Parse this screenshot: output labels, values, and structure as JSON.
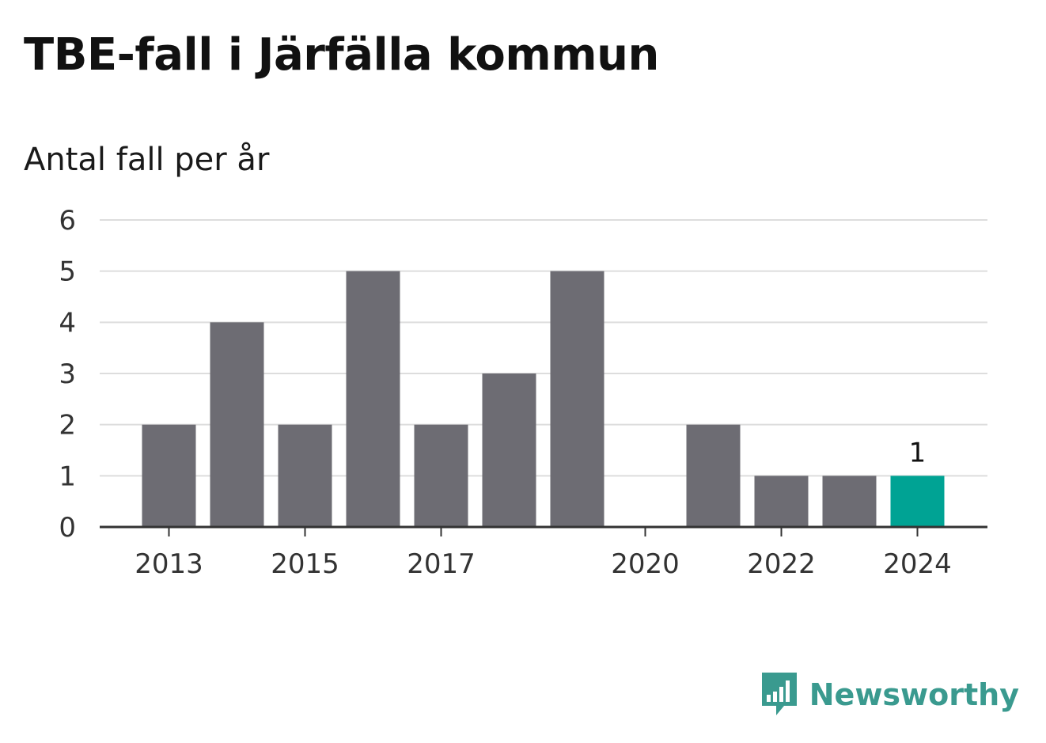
{
  "title": "TBE-fall i Järfälla kommun",
  "subtitle": "Antal fall per år",
  "brand": {
    "name": "Newsworthy",
    "logo_icon": "chart-speech-bubble-icon",
    "color": "#3a9a8f"
  },
  "colors": {
    "bar": "#6d6c73",
    "highlight": "#00a394",
    "grid": "#dddddd",
    "axis": "#333333",
    "text": "#333333"
  },
  "chart_data": {
    "type": "bar",
    "title": "TBE-fall i Järfälla kommun",
    "subtitle": "Antal fall per år",
    "xlabel": "",
    "ylabel": "",
    "ylim": [
      0,
      6
    ],
    "yticks": [
      "0",
      "1",
      "2",
      "3",
      "4",
      "5",
      "6"
    ],
    "categories": [
      "2013",
      "2014",
      "2015",
      "2016",
      "2017",
      "2018",
      "2019",
      "2020",
      "2021",
      "2022",
      "2023",
      "2024"
    ],
    "values": [
      2,
      4,
      2,
      5,
      2,
      3,
      5,
      0,
      2,
      1,
      1,
      1
    ],
    "xtick_labels": [
      "2013",
      "2015",
      "2017",
      "2020",
      "2022",
      "2024"
    ],
    "highlight_category": "2024",
    "data_labels": [
      {
        "category": "2024",
        "text": "1"
      }
    ],
    "grid": true,
    "legend": "none"
  }
}
